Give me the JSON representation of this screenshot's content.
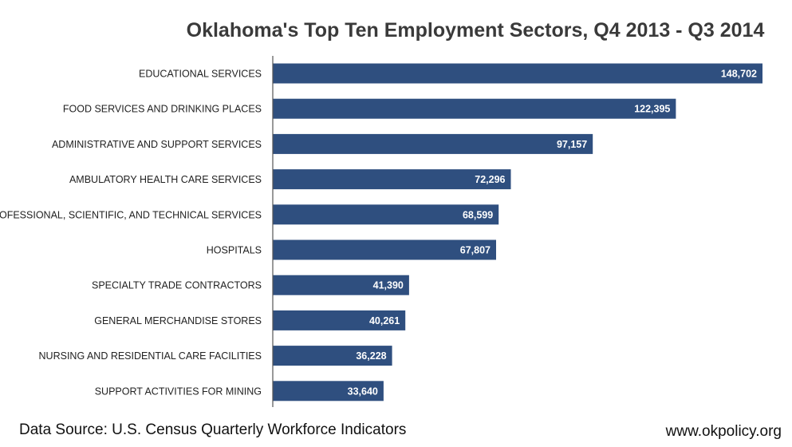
{
  "chart_data": {
    "type": "bar",
    "orientation": "horizontal",
    "title": "Oklahoma's Top Ten Employment Sectors, Q4 2013 - Q3 2014",
    "categories": [
      "EDUCATIONAL SERVICES",
      "FOOD SERVICES AND DRINKING PLACES",
      "ADMINISTRATIVE AND SUPPORT SERVICES",
      "AMBULATORY HEALTH CARE SERVICES",
      "PROFESSIONAL, SCIENTIFIC, AND TECHNICAL SERVICES",
      "HOSPITALS",
      "SPECIALTY TRADE CONTRACTORS",
      "GENERAL MERCHANDISE STORES",
      "NURSING AND RESIDENTIAL CARE FACILITIES",
      "SUPPORT ACTIVITIES FOR MINING"
    ],
    "values": [
      148702,
      122395,
      97157,
      72296,
      68599,
      67807,
      41390,
      40261,
      36228,
      33640
    ],
    "value_labels": [
      "148,702",
      "122,395",
      "97,157",
      "72,296",
      "68,599",
      "67,807",
      "41,390",
      "40,261",
      "36,228",
      "33,640"
    ],
    "xlim": [
      0,
      148702
    ],
    "grid": false,
    "bar_color": "#2f4f7f"
  },
  "footer": {
    "source": "Data Source: U.S. Census Quarterly Workforce Indicators",
    "website": "www.okpolicy.org"
  }
}
